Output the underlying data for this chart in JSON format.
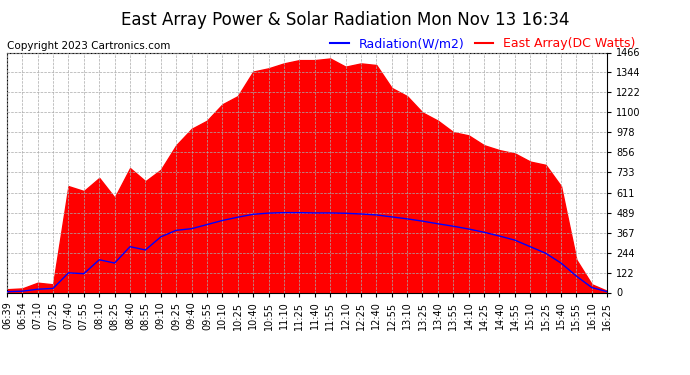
{
  "title": "East Array Power & Solar Radiation Mon Nov 13 16:34",
  "copyright": "Copyright 2023 Cartronics.com",
  "legend_radiation": "Radiation(W/m2)",
  "legend_array": "East Array(DC Watts)",
  "ylabel_right_ticks": [
    0.0,
    122.2,
    244.4,
    366.6,
    488.8,
    611.0,
    733.3,
    855.5,
    977.7,
    1099.9,
    1222.1,
    1344.3,
    1466.5
  ],
  "ymax": 1466.5,
  "ymin": 0.0,
  "background_color": "#ffffff",
  "plot_bg_color": "#ffffff",
  "grid_color": "#aaaaaa",
  "radiation_color": "#ff0000",
  "array_color": "#0000ff",
  "title_color": "#000000",
  "copyright_color": "#000000",
  "radiation_legend_color": "#0000ff",
  "array_legend_color": "#ff0000",
  "time_labels": [
    "06:39",
    "06:54",
    "07:10",
    "07:25",
    "07:40",
    "07:55",
    "08:10",
    "08:25",
    "08:40",
    "08:55",
    "09:10",
    "09:25",
    "09:40",
    "09:55",
    "10:10",
    "10:25",
    "10:40",
    "10:55",
    "11:10",
    "11:25",
    "11:40",
    "11:55",
    "12:10",
    "12:25",
    "12:40",
    "12:55",
    "13:10",
    "13:25",
    "13:40",
    "13:55",
    "14:10",
    "14:25",
    "14:40",
    "14:55",
    "15:10",
    "15:25",
    "15:40",
    "15:55",
    "16:10",
    "16:25"
  ],
  "radiation_values": [
    20,
    25,
    60,
    50,
    650,
    620,
    700,
    580,
    760,
    680,
    750,
    900,
    1000,
    1050,
    1150,
    1200,
    1350,
    1370,
    1400,
    1420,
    1420,
    1430,
    1380,
    1400,
    1390,
    1250,
    1200,
    1100,
    1050,
    980,
    960,
    900,
    870,
    850,
    800,
    780,
    650,
    200,
    50,
    10
  ],
  "array_values": [
    5,
    8,
    20,
    25,
    120,
    115,
    200,
    180,
    280,
    260,
    340,
    380,
    390,
    415,
    440,
    460,
    478,
    485,
    488,
    488,
    486,
    486,
    484,
    480,
    474,
    462,
    450,
    436,
    420,
    405,
    388,
    368,
    345,
    320,
    280,
    240,
    180,
    100,
    30,
    5
  ],
  "title_fontsize": 12,
  "tick_fontsize": 7,
  "legend_fontsize": 9,
  "copyright_fontsize": 7.5,
  "figwidth": 6.9,
  "figheight": 3.75,
  "dpi": 100
}
